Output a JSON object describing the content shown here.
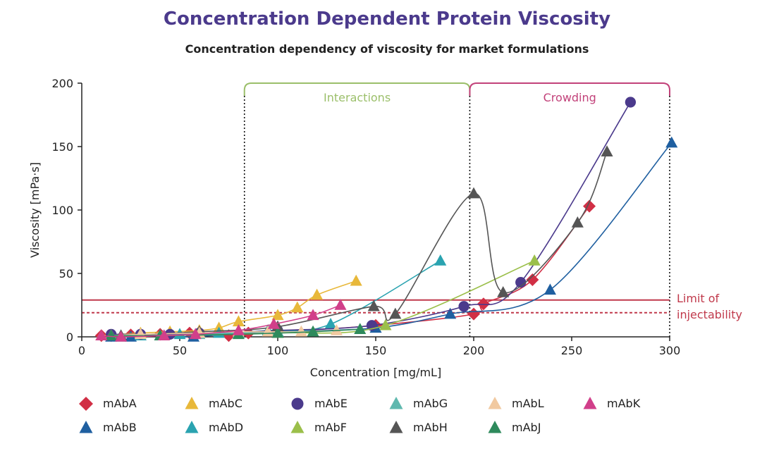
{
  "title": "Concentration Dependent Protein Viscosity",
  "subtitle": "Concentration dependency of viscosity for market formulations",
  "chart_data": {
    "type": "scatter",
    "xlabel": "Concentration [mg/mL]",
    "ylabel": "Viscosity [mPa·s]",
    "xlim": [
      0,
      300
    ],
    "ylim": [
      0,
      200
    ],
    "xticks": [
      "0",
      "50",
      "100",
      "150",
      "200",
      "250",
      "300"
    ],
    "yticks": [
      "0",
      "50",
      "100",
      "150",
      "200"
    ],
    "grid": false,
    "legend_position": "bottom",
    "regions": [
      {
        "label": "Interactions",
        "x": [
          83,
          198
        ],
        "color": "#9bbf6a"
      },
      {
        "label": "Crowding",
        "x": [
          198,
          300
        ],
        "color": "#c2427a"
      }
    ],
    "limits": {
      "label_line1": "Limit of",
      "label_line2": "injectability",
      "solid_y": 29,
      "dashed_y": 19,
      "color": "#c0394b"
    },
    "series": [
      {
        "name": "mAbA",
        "marker": "diamond",
        "color": "#d12f45",
        "x": [
          10,
          15,
          25,
          40,
          55,
          75,
          85,
          100,
          150,
          200,
          205,
          230,
          259
        ],
        "y": [
          1,
          1,
          1.5,
          2,
          3,
          1,
          3,
          4,
          9,
          18,
          26,
          45,
          103
        ]
      },
      {
        "name": "mAbB",
        "marker": "triangle",
        "color": "#1f5fa0",
        "x": [
          15,
          25,
          40,
          57,
          80,
          100,
          150,
          188,
          239,
          301
        ],
        "y": [
          0,
          0,
          1,
          0,
          3,
          4,
          7,
          18,
          37,
          153
        ]
      },
      {
        "name": "mAbC",
        "marker": "triangle",
        "color": "#e8b83a",
        "x": [
          10,
          30,
          45,
          60,
          70,
          80,
          100,
          110,
          120,
          140
        ],
        "y": [
          1,
          3,
          4,
          5,
          7,
          12,
          17,
          23,
          33,
          44
        ]
      },
      {
        "name": "mAbD",
        "marker": "triangle",
        "color": "#2aa3b0",
        "x": [
          15,
          30,
          50,
          70,
          95,
          127,
          183
        ],
        "y": [
          1,
          1,
          2,
          3,
          5,
          10,
          60
        ]
      },
      {
        "name": "mAbE",
        "marker": "circle",
        "color": "#4b3a8c",
        "x": [
          15,
          30,
          45,
          60,
          100,
          148,
          195,
          224,
          280
        ],
        "y": [
          2,
          2,
          2,
          3,
          5,
          9,
          24,
          43,
          185
        ]
      },
      {
        "name": "mAbF",
        "marker": "triangle",
        "color": "#9bbf4a",
        "x": [
          15,
          40,
          100,
          155,
          231
        ],
        "y": [
          1,
          1,
          3,
          9,
          60
        ]
      },
      {
        "name": "mAbG",
        "marker": "triangle",
        "color": "#5fb8ae",
        "x": [
          20,
          40,
          60,
          80,
          100
        ],
        "y": [
          0,
          1,
          2,
          3,
          4
        ]
      },
      {
        "name": "mAbH",
        "marker": "triangle",
        "color": "#555555",
        "x": [
          20,
          60,
          100,
          149,
          160,
          200,
          215,
          253,
          268
        ],
        "y": [
          1,
          4,
          8,
          24,
          18,
          113,
          35,
          90,
          146
        ]
      },
      {
        "name": "mAbL",
        "marker": "triangle",
        "color": "#f1c9a0",
        "x": [
          15,
          30,
          60,
          80,
          95,
          112,
          130
        ],
        "y": [
          1,
          2,
          3,
          4,
          4,
          4,
          5
        ]
      },
      {
        "name": "mAbJ",
        "marker": "triangle",
        "color": "#2e8a5c",
        "x": [
          15,
          40,
          80,
          100,
          118,
          142
        ],
        "y": [
          1,
          1,
          2,
          3,
          4,
          6
        ]
      },
      {
        "name": "mAbK",
        "marker": "triangle",
        "color": "#d13f8a",
        "x": [
          10,
          20,
          42,
          58,
          80,
          98,
          118,
          132
        ],
        "y": [
          1,
          0,
          1,
          2,
          5,
          10,
          17,
          25
        ]
      }
    ]
  },
  "legend": {
    "row1": [
      {
        "name": "mAbA",
        "marker": "diamond",
        "color": "#d12f45"
      },
      {
        "name": "mAbC",
        "marker": "triangle",
        "color": "#e8b83a"
      },
      {
        "name": "mAbE",
        "marker": "circle",
        "color": "#4b3a8c"
      },
      {
        "name": "mAbG",
        "marker": "triangle",
        "color": "#5fb8ae"
      },
      {
        "name": "mAbL",
        "marker": "triangle",
        "color": "#f1c9a0"
      },
      {
        "name": "mAbK",
        "marker": "triangle",
        "color": "#d13f8a"
      }
    ],
    "row2": [
      {
        "name": "mAbB",
        "marker": "triangle",
        "color": "#1f5fa0"
      },
      {
        "name": "mAbD",
        "marker": "triangle",
        "color": "#2aa3b0"
      },
      {
        "name": "mAbF",
        "marker": "triangle",
        "color": "#9bbf4a"
      },
      {
        "name": "mAbH",
        "marker": "triangle",
        "color": "#555555"
      },
      {
        "name": "mAbJ",
        "marker": "triangle",
        "color": "#2e8a5c"
      }
    ]
  }
}
